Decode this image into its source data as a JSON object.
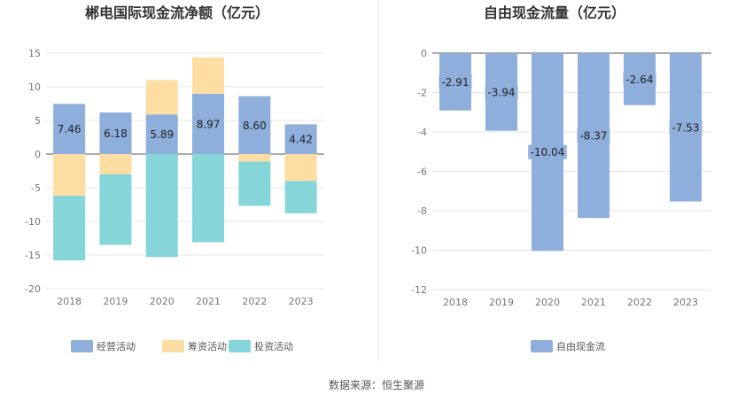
{
  "source_text": "数据来源：恒生聚源",
  "chart_data": [
    {
      "type": "bar",
      "stacked": true,
      "title": "郴电国际现金流净额（亿元）",
      "categories": [
        "2018",
        "2019",
        "2020",
        "2021",
        "2022",
        "2023"
      ],
      "ylim": [
        -20,
        15
      ],
      "yticks": [
        15,
        10,
        5,
        0,
        -5,
        -10,
        -15,
        -20
      ],
      "grid": true,
      "legend_position": "bottom",
      "series": [
        {
          "name": "经营活动",
          "color": "#8eaedb",
          "values": [
            7.46,
            6.18,
            5.89,
            8.97,
            8.6,
            4.42
          ],
          "labels": [
            "7.46",
            "6.18",
            "5.89",
            "8.97",
            "8.60",
            "4.42"
          ]
        },
        {
          "name": "筹资活动",
          "color": "#fddda2",
          "values": [
            -6.2,
            -3.0,
            5.1,
            5.4,
            -1.1,
            -4.0
          ]
        },
        {
          "name": "投资活动",
          "color": "#86d5d9",
          "values": [
            -9.6,
            -10.5,
            -15.3,
            -13.1,
            -6.6,
            -4.8
          ]
        }
      ]
    },
    {
      "type": "bar",
      "title": "自由现金流量（亿元）",
      "categories": [
        "2018",
        "2019",
        "2020",
        "2021",
        "2022",
        "2023"
      ],
      "ylim": [
        -12,
        0
      ],
      "yticks": [
        0,
        -2,
        -4,
        -6,
        -8,
        -10,
        -12
      ],
      "grid": true,
      "legend_position": "bottom",
      "series": [
        {
          "name": "自由现金流",
          "color": "#8eaedb",
          "values": [
            -2.91,
            -3.94,
            -10.04,
            -8.37,
            -2.64,
            -7.53
          ],
          "labels": [
            "-2.91",
            "-3.94",
            "-10.04",
            "-8.37",
            "-2.64",
            "-7.53"
          ]
        }
      ]
    }
  ]
}
